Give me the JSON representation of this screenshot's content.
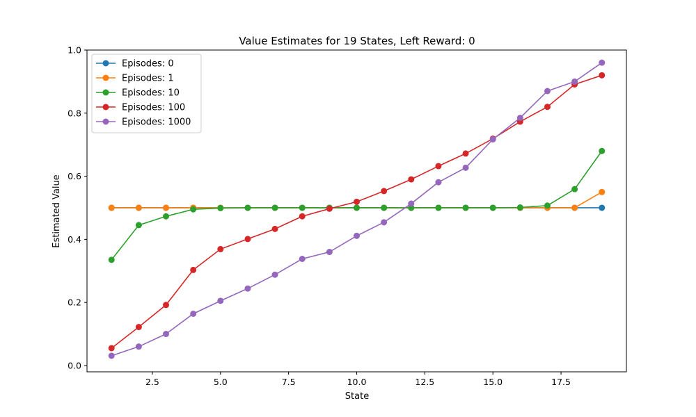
{
  "chart_data": {
    "type": "line",
    "title": "Value Estimates for 19 States, Left Reward: 0",
    "xlabel": "State",
    "ylabel": "Estimated Value",
    "xlim": [
      0.1,
      19.9
    ],
    "ylim": [
      -0.02,
      1.0
    ],
    "xticks": [
      2.5,
      5.0,
      7.5,
      10.0,
      12.5,
      15.0,
      17.5
    ],
    "xtick_labels": [
      "2.5",
      "5.0",
      "7.5",
      "10.0",
      "12.5",
      "15.0",
      "17.5"
    ],
    "yticks": [
      0.0,
      0.2,
      0.4,
      0.6,
      0.8,
      1.0
    ],
    "ytick_labels": [
      "0.0",
      "0.2",
      "0.4",
      "0.6",
      "0.8",
      "1.0"
    ],
    "grid": false,
    "legend_position": "upper-left",
    "x": [
      1,
      2,
      3,
      4,
      5,
      6,
      7,
      8,
      9,
      10,
      11,
      12,
      13,
      14,
      15,
      16,
      17,
      18,
      19
    ],
    "series": [
      {
        "name": "Episodes: 0",
        "color": "#1f77b4",
        "values": [
          0.5,
          0.5,
          0.5,
          0.5,
          0.5,
          0.5,
          0.5,
          0.5,
          0.5,
          0.5,
          0.5,
          0.5,
          0.5,
          0.5,
          0.5,
          0.5,
          0.5,
          0.5,
          0.5
        ]
      },
      {
        "name": "Episodes: 1",
        "color": "#ff7f0e",
        "values": [
          0.5,
          0.5,
          0.5,
          0.5,
          0.5,
          0.5,
          0.5,
          0.5,
          0.5,
          0.5,
          0.5,
          0.5,
          0.5,
          0.5,
          0.5,
          0.5,
          0.5,
          0.5,
          0.55
        ]
      },
      {
        "name": "Episodes: 10",
        "color": "#2ca02c",
        "values": [
          0.335,
          0.445,
          0.473,
          0.495,
          0.499,
          0.5,
          0.5,
          0.5,
          0.5,
          0.5,
          0.5,
          0.5,
          0.5,
          0.5,
          0.5,
          0.501,
          0.507,
          0.559,
          0.68
        ]
      },
      {
        "name": "Episodes: 100",
        "color": "#d62728",
        "values": [
          0.055,
          0.122,
          0.192,
          0.303,
          0.369,
          0.401,
          0.433,
          0.473,
          0.497,
          0.519,
          0.553,
          0.59,
          0.632,
          0.672,
          0.719,
          0.773,
          0.82,
          0.891,
          0.92
        ]
      },
      {
        "name": "Episodes: 1000",
        "color": "#9467bd",
        "values": [
          0.031,
          0.06,
          0.1,
          0.164,
          0.205,
          0.244,
          0.288,
          0.338,
          0.36,
          0.411,
          0.454,
          0.513,
          0.581,
          0.627,
          0.717,
          0.785,
          0.87,
          0.9,
          0.96
        ]
      }
    ]
  }
}
